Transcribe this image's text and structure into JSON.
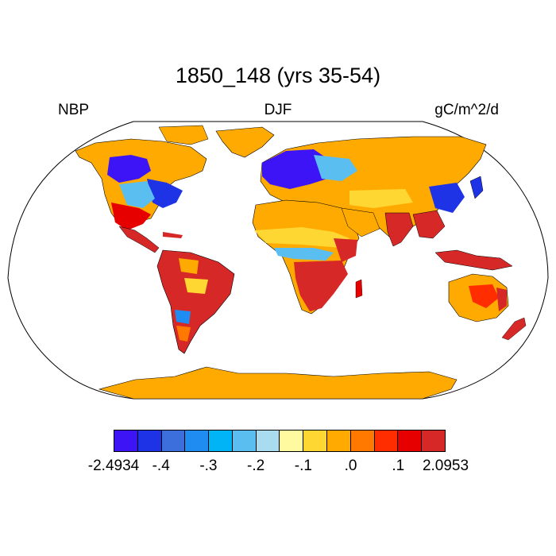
{
  "title": "1850_148 (yrs 35-54)",
  "left_label": "NBP",
  "center_label": "DJF",
  "right_label": "gC/m^2/d",
  "colorbar": {
    "colors": [
      "#3c14f5",
      "#1e32e6",
      "#3c6edc",
      "#1e8cf0",
      "#00b4f5",
      "#5abef0",
      "#aadcf0",
      "#fffaa0",
      "#ffd732",
      "#ffaa00",
      "#ff7800",
      "#ff2d00",
      "#e60000",
      "#d72828"
    ],
    "labels": [
      "-2.4934",
      "-.4",
      "-.3",
      "-.2",
      "-.1",
      ".0",
      ".1",
      "2.0953"
    ]
  },
  "map_style": {
    "ocean": "#ffffff",
    "outline": "#000000",
    "default_land": "#ffaa00",
    "regions_color_names": [
      "blue",
      "light-blue",
      "yellow",
      "orange",
      "red"
    ]
  }
}
